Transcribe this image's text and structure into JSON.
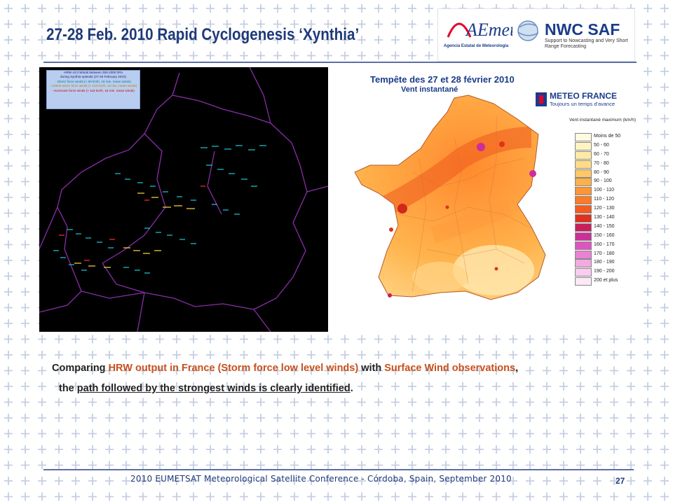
{
  "slide": {
    "title": "27-28 Feb. 2010 Rapid Cyclogenesis ‘Xynthia’",
    "page_number": "27",
    "footer": "2010 EUMETSAT Meteorological Satellite Conference  -  Córdoba, Spain, September 2010"
  },
  "logos": {
    "aemet_name": "AEmet",
    "aemet_subtitle": "Agencia Estatal de Meteorología",
    "nwc_name": "NWC SAF",
    "nwc_subtitle": "Support to Nowcasting and Very Short Range Forecasting"
  },
  "left_map": {
    "legend_lines": [
      "HRW v3.0 Winds between 250-1000 hPa",
      "during Xynthia episode (27-28 February 2010)",
      "- Storm force winds (> 89 km/h, 15 min. mean winds)",
      "- Violent storm force winds (> 102 km/h, 15 min. mean winds)",
      "- Hurricane force winds (> 118 km/h, 15 min. mean winds)"
    ]
  },
  "right_map": {
    "title": "Tempête des 27 et 28 février 2010",
    "subtitle": "Vent instantané",
    "brand_name": "METEO FRANCE",
    "brand_tagline": "Toujours un temps d'avance",
    "scale_title": "Vent instantané maximum (km/h)",
    "scale": [
      {
        "label": "Moins de 50",
        "color": "#fffbe0"
      },
      {
        "label": "50 - 60",
        "color": "#fff4c2"
      },
      {
        "label": "60 - 70",
        "color": "#ffe9a3"
      },
      {
        "label": "70 - 80",
        "color": "#ffdb85"
      },
      {
        "label": "80 - 90",
        "color": "#ffc766"
      },
      {
        "label": "90 - 100",
        "color": "#ffb04a"
      },
      {
        "label": "100 - 110",
        "color": "#ff9533"
      },
      {
        "label": "110 - 120",
        "color": "#ff7a24"
      },
      {
        "label": "120 - 130",
        "color": "#f55a1e"
      },
      {
        "label": "130 - 140",
        "color": "#e0311c"
      },
      {
        "label": "140 - 150",
        "color": "#c9205a"
      },
      {
        "label": "150 - 160",
        "color": "#cc2f9a"
      },
      {
        "label": "160 - 170",
        "color": "#dd55bf"
      },
      {
        "label": "170 - 180",
        "color": "#e982d3"
      },
      {
        "label": "180 - 190",
        "color": "#f2aae2"
      },
      {
        "label": "190 - 200",
        "color": "#f8cdef"
      },
      {
        "label": "200 et plus",
        "color": "#fde8f8"
      }
    ]
  },
  "caption": {
    "part1": "Comparing ",
    "hl1": "HRW output in France (Storm force low level winds)",
    "part2": " with ",
    "hl2": "Surface Wind observations",
    "part3": ",",
    "line2_prefix": "the ",
    "line2_underlined": "path followed by the strongest winds is clearly identified",
    "line2_suffix": "."
  },
  "colors": {
    "title": "#1f3a7a",
    "highlight": "#c8501b",
    "pattern": "#c5cfe0"
  }
}
